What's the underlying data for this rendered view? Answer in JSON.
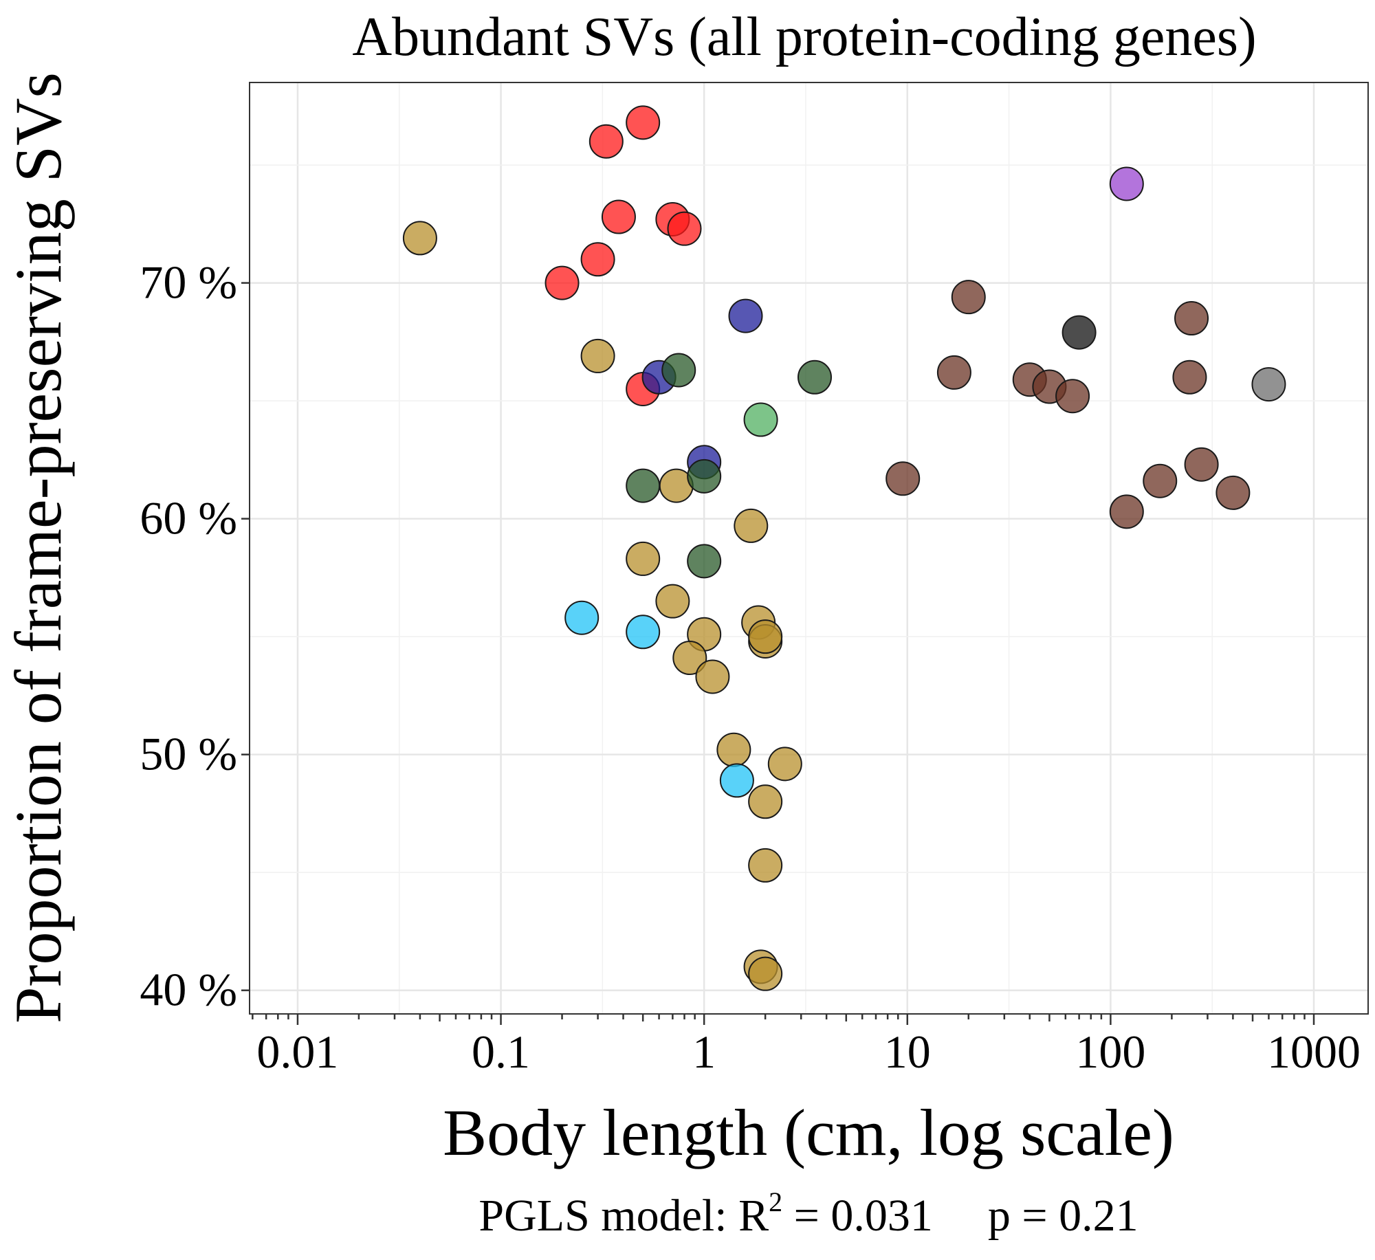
{
  "chart_data": {
    "type": "scatter",
    "title": "Abundant SVs (all protein-coding genes)",
    "xlabel": "Body length (cm, log scale)",
    "ylabel": "Proportion of frame-preserving SVs",
    "x_scale": "log10",
    "xlim": [
      0.0058,
      1850
    ],
    "ylim": [
      39.0,
      78.5
    ],
    "x_ticks": [
      0.01,
      0.1,
      1,
      10,
      100,
      1000
    ],
    "x_tick_labels": [
      "0.01",
      "0.1",
      "1",
      "10",
      "100",
      "1000"
    ],
    "y_ticks": [
      40,
      50,
      60,
      70
    ],
    "y_tick_labels": [
      "40 %",
      "50 %",
      "60 %",
      "70 %"
    ],
    "grid": true,
    "legend": "none",
    "footer": {
      "prefix": "PGLS model: R",
      "superscript": "2",
      "r2_text": " = 0.031",
      "p_text": "p = 0.21"
    },
    "series": [
      {
        "color": "#ff1a1a",
        "points": [
          {
            "x": 0.5,
            "y": 76.8
          },
          {
            "x": 0.33,
            "y": 76.0
          },
          {
            "x": 0.38,
            "y": 72.8
          },
          {
            "x": 0.7,
            "y": 72.7
          },
          {
            "x": 0.8,
            "y": 72.3
          },
          {
            "x": 0.3,
            "y": 71.0
          },
          {
            "x": 0.2,
            "y": 70.0
          },
          {
            "x": 0.5,
            "y": 65.5
          }
        ]
      },
      {
        "color": "#b8902e",
        "points": [
          {
            "x": 0.04,
            "y": 71.9
          },
          {
            "x": 0.3,
            "y": 66.9
          },
          {
            "x": 0.73,
            "y": 61.4
          },
          {
            "x": 1.7,
            "y": 59.7
          },
          {
            "x": 0.5,
            "y": 58.3
          },
          {
            "x": 0.7,
            "y": 56.5
          },
          {
            "x": 1.85,
            "y": 55.6
          },
          {
            "x": 1.0,
            "y": 55.1
          },
          {
            "x": 2.0,
            "y": 54.8
          },
          {
            "x": 2.0,
            "y": 55.0
          },
          {
            "x": 0.85,
            "y": 54.1
          },
          {
            "x": 1.1,
            "y": 53.3
          },
          {
            "x": 1.4,
            "y": 50.2
          },
          {
            "x": 2.5,
            "y": 49.6
          },
          {
            "x": 2.0,
            "y": 48.0
          },
          {
            "x": 2.0,
            "y": 45.3
          },
          {
            "x": 1.9,
            "y": 41.0
          },
          {
            "x": 2.0,
            "y": 40.7
          }
        ]
      },
      {
        "color": "#1f1f99",
        "points": [
          {
            "x": 1.6,
            "y": 68.6
          },
          {
            "x": 0.6,
            "y": 66.0
          },
          {
            "x": 1.0,
            "y": 62.4
          }
        ]
      },
      {
        "color": "#2a5a2a",
        "points": [
          {
            "x": 0.75,
            "y": 66.3
          },
          {
            "x": 3.5,
            "y": 66.0
          },
          {
            "x": 1.0,
            "y": 61.8
          },
          {
            "x": 0.5,
            "y": 61.4
          },
          {
            "x": 1.0,
            "y": 58.2
          }
        ]
      },
      {
        "color": "#52b062",
        "points": [
          {
            "x": 1.9,
            "y": 64.2
          }
        ]
      },
      {
        "color": "#21c3f7",
        "points": [
          {
            "x": 0.25,
            "y": 55.8
          },
          {
            "x": 0.5,
            "y": 55.2
          },
          {
            "x": 1.45,
            "y": 48.9
          }
        ]
      },
      {
        "color": "#6b3426",
        "points": [
          {
            "x": 20,
            "y": 69.4
          },
          {
            "x": 250,
            "y": 68.5
          },
          {
            "x": 17,
            "y": 66.2
          },
          {
            "x": 40,
            "y": 65.9
          },
          {
            "x": 245,
            "y": 66.0
          },
          {
            "x": 50,
            "y": 65.6
          },
          {
            "x": 65,
            "y": 65.2
          },
          {
            "x": 9.5,
            "y": 61.7
          },
          {
            "x": 280,
            "y": 62.3
          },
          {
            "x": 175,
            "y": 61.6
          },
          {
            "x": 400,
            "y": 61.1
          },
          {
            "x": 120,
            "y": 60.3
          }
        ]
      },
      {
        "color": "#111111",
        "points": [
          {
            "x": 70,
            "y": 67.9
          }
        ]
      },
      {
        "color": "#9a45d0",
        "points": [
          {
            "x": 120,
            "y": 74.2
          }
        ]
      },
      {
        "color": "#6e6e6e",
        "points": [
          {
            "x": 600,
            "y": 65.7
          }
        ]
      }
    ]
  }
}
